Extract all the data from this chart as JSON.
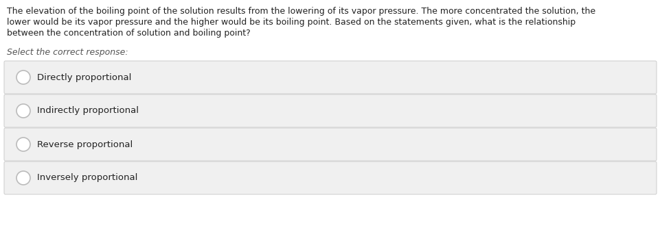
{
  "question_text_line1": "The elevation of the boiling point of the solution results from the lowering of its vapor pressure. The more concentrated the solution, the",
  "question_text_line2": "lower would be its vapor pressure and the higher would be its boiling point. Based on the statements given, what is the relationship",
  "question_text_line3": "between the concentration of solution and boiling point?",
  "select_label": "Select the correct response:",
  "options": [
    "Directly proportional",
    "Indirectly proportional",
    "Reverse proportional",
    "Inversely proportional"
  ],
  "bg_color": "#ffffff",
  "option_bg_color": "#f0f0f0",
  "option_border_color": "#cccccc",
  "text_color": "#222222",
  "select_label_color": "#555555",
  "circle_edge_color": "#bbbbbb",
  "font_size_question": 9.0,
  "font_size_select": 9.0,
  "font_size_option": 9.5,
  "fig_width": 9.62,
  "fig_height": 3.39,
  "dpi": 100
}
